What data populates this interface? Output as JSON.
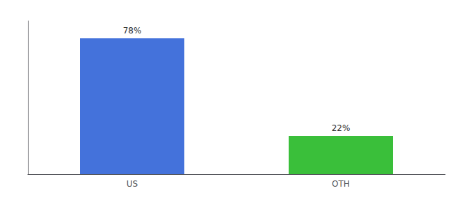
{
  "chart_data": {
    "type": "bar",
    "categories": [
      "US",
      "OTH"
    ],
    "values": [
      78,
      22
    ],
    "value_labels": [
      "78%",
      "22%"
    ],
    "colors": [
      "#4472db",
      "#3abf3a"
    ],
    "ylim": [
      0,
      88
    ],
    "data_labels": true,
    "tick_labels": "x",
    "grid": false
  }
}
